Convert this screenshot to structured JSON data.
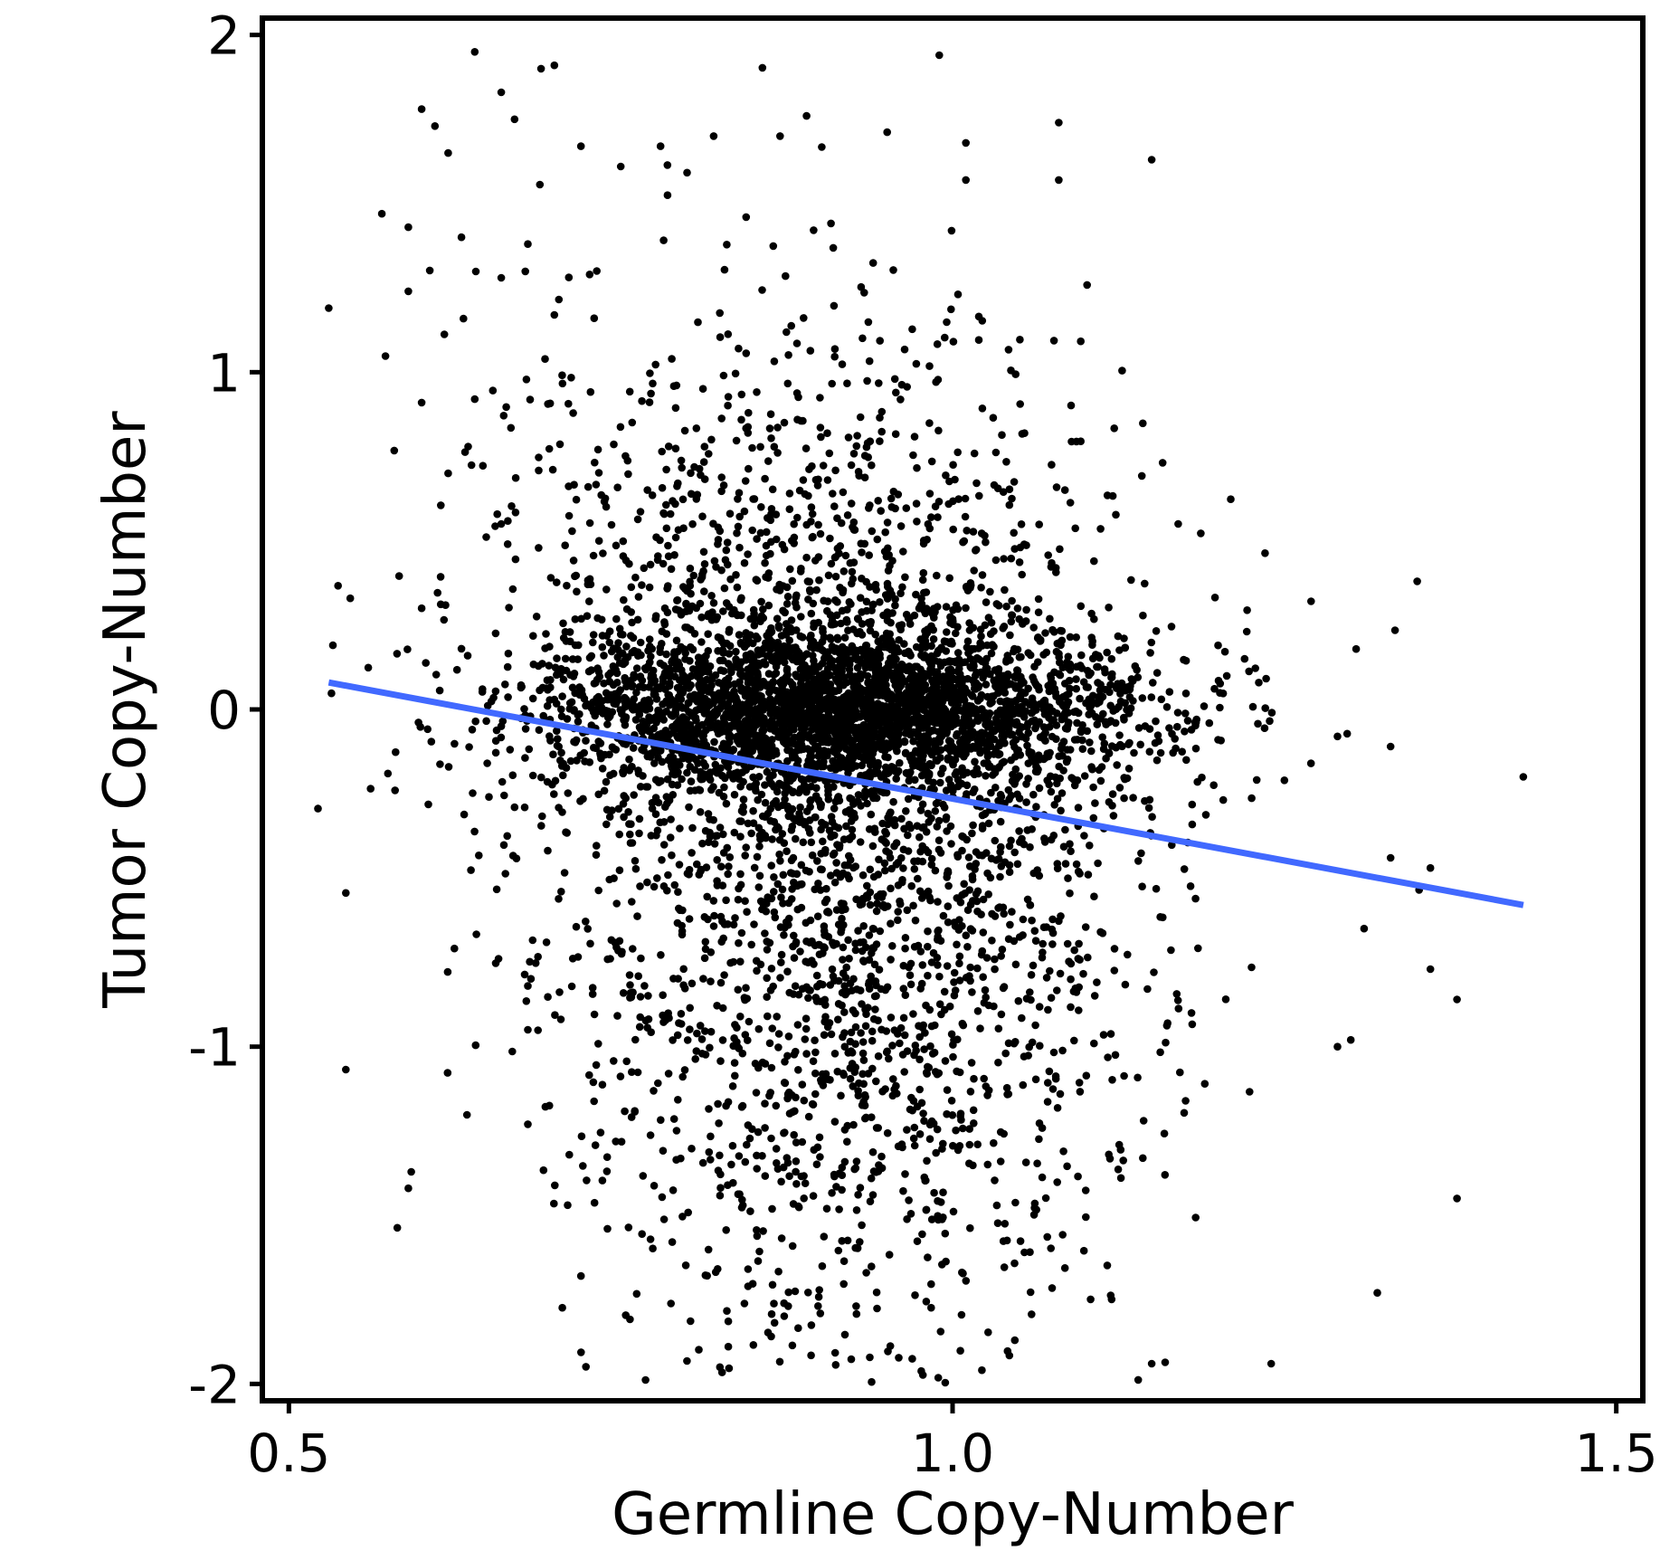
{
  "chart_data": {
    "type": "scatter",
    "title": "",
    "xlabel": "Germline Copy-Number",
    "ylabel": "Tumor Copy-Number",
    "xlim": [
      0.48,
      1.52
    ],
    "ylim": [
      -2.05,
      2.05
    ],
    "x_ticks": [
      {
        "value": 0.5,
        "label": "0.5"
      },
      {
        "value": 1.0,
        "label": "1.0"
      },
      {
        "value": 1.5,
        "label": "1.5"
      }
    ],
    "y_ticks": [
      {
        "value": 2,
        "label": "2"
      },
      {
        "value": 1,
        "label": "1"
      },
      {
        "value": 0,
        "label": "0"
      },
      {
        "value": -1,
        "label": "-1"
      },
      {
        "value": -2,
        "label": "-2"
      }
    ],
    "grid": false,
    "point_color": "#000000",
    "fit_line_color": "#4169ff",
    "points_summary": {
      "approx_count": 6000,
      "x_center": 0.92,
      "x_spread_sd": 0.11,
      "y_center": 0.0,
      "y_spread_sd": 0.55
    },
    "fit_line": {
      "x": [
        0.53,
        1.43
      ],
      "y": [
        0.08,
        -0.58
      ]
    },
    "points": [
      [
        0.53,
        1.19
      ],
      [
        0.57,
        1.47
      ],
      [
        0.59,
        1.43
      ],
      [
        0.6,
        1.78
      ],
      [
        0.61,
        1.73
      ],
      [
        0.62,
        1.65
      ],
      [
        0.64,
        1.95
      ],
      [
        0.66,
        1.83
      ],
      [
        0.67,
        1.75
      ],
      [
        0.69,
        1.9
      ],
      [
        0.7,
        1.91
      ],
      [
        0.72,
        1.67
      ],
      [
        0.75,
        1.61
      ],
      [
        0.78,
        1.67
      ],
      [
        0.82,
        1.7
      ],
      [
        0.87,
        1.7
      ],
      [
        0.89,
        1.76
      ],
      [
        0.99,
        1.94
      ],
      [
        1.01,
        1.68
      ],
      [
        1.08,
        1.74
      ],
      [
        1.15,
        1.63
      ],
      [
        1.08,
        1.57
      ],
      [
        1.01,
        1.57
      ],
      [
        0.59,
        1.24
      ],
      [
        0.63,
        1.4
      ],
      [
        0.66,
        1.28
      ],
      [
        0.68,
        1.38
      ],
      [
        0.7,
        1.17
      ],
      [
        0.73,
        1.16
      ],
      [
        0.6,
        0.91
      ],
      [
        0.64,
        0.92
      ],
      [
        0.62,
        0.7
      ],
      [
        0.66,
        0.55
      ],
      [
        0.6,
        0.3
      ],
      [
        0.63,
        0.18
      ],
      [
        0.58,
        -0.24
      ],
      [
        0.59,
        -1.42
      ],
      [
        0.66,
        -0.05
      ],
      [
        0.67,
        -0.29
      ],
      [
        0.68,
        -0.82
      ],
      [
        0.68,
        -0.95
      ],
      [
        0.68,
        -1.23
      ],
      [
        0.71,
        -1.47
      ],
      [
        0.72,
        -1.68
      ],
      [
        0.74,
        -1.54
      ],
      [
        1.17,
        0.55
      ],
      [
        1.2,
        0.19
      ],
      [
        1.22,
        0.15
      ],
      [
        1.25,
        -0.21
      ],
      [
        1.27,
        -0.16
      ],
      [
        1.29,
        -0.08
      ],
      [
        1.33,
        -0.44
      ],
      [
        1.35,
        0.38
      ],
      [
        1.36,
        -0.47
      ],
      [
        1.36,
        -0.77
      ],
      [
        1.38,
        -0.86
      ],
      [
        1.38,
        -1.45
      ],
      [
        1.43,
        -0.2
      ],
      [
        1.32,
        -1.73
      ],
      [
        1.29,
        -1.0
      ],
      [
        1.3,
        -0.98
      ],
      [
        1.24,
        -1.94
      ],
      [
        1.19,
        -1.11
      ],
      [
        1.18,
        -0.9
      ],
      [
        1.16,
        -1.38
      ],
      [
        1.15,
        -1.94
      ],
      [
        1.31,
        -0.65
      ],
      [
        1.2,
        -0.09
      ],
      [
        1.18,
        -0.06
      ],
      [
        1.33,
        -0.11
      ]
    ]
  }
}
